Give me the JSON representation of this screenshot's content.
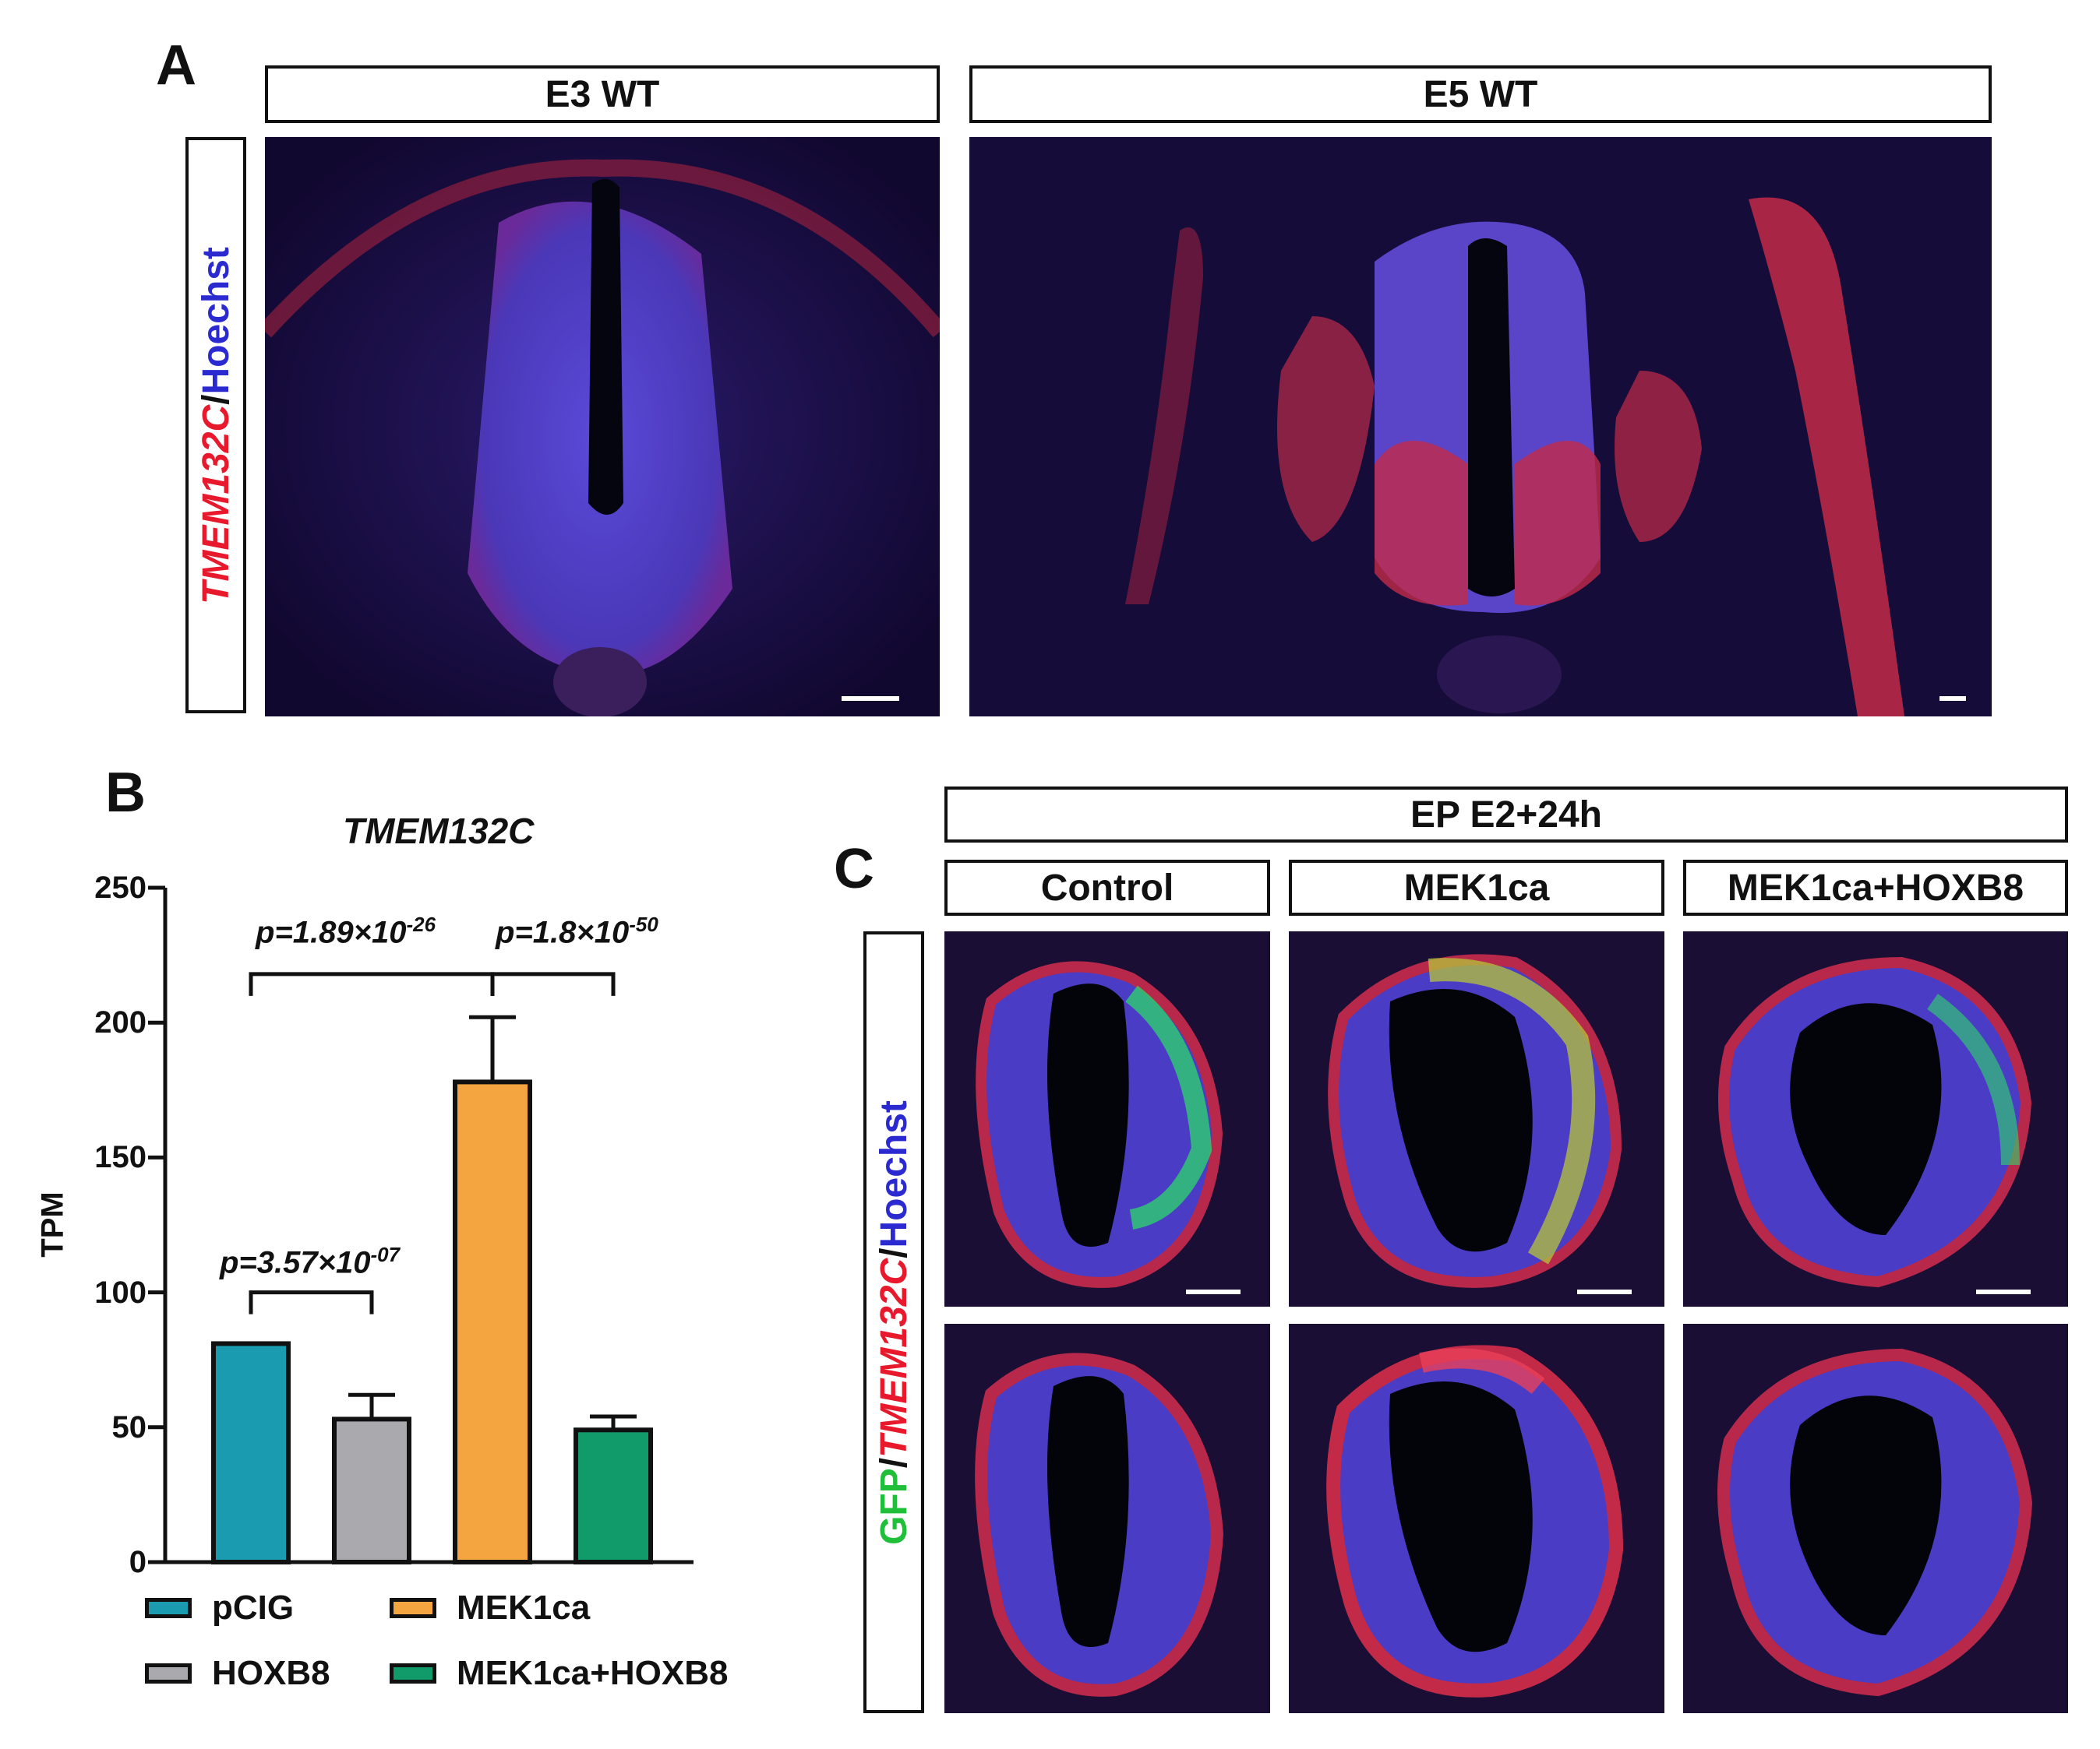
{
  "panel_a": {
    "letter": "A",
    "side_label": {
      "gene": "TMEM132C",
      "sep": "/",
      "stain": "Hoechst"
    },
    "headers": [
      "E3 WT",
      "E5 WT"
    ]
  },
  "panel_b": {
    "letter": "B",
    "yticks": [
      "250",
      "200",
      "150",
      "100",
      "50",
      "0"
    ],
    "legend": [
      {
        "label": "pCIG",
        "color": "#1a9bb0"
      },
      {
        "label": "MEK1ca",
        "color": "#f5a53f"
      },
      {
        "label": "HOXB8",
        "color": "#a9a9ae"
      },
      {
        "label": "MEK1ca+HOXB8",
        "color": "#129b6a"
      }
    ],
    "pvalues": [
      {
        "base": "p=3.57×10",
        "exp": "-07"
      },
      {
        "base": "p=1.89×10",
        "exp": "-26"
      },
      {
        "base": "p=1.8×10",
        "exp": "-50"
      }
    ]
  },
  "chart_data": {
    "type": "bar",
    "title": "TMEM132C",
    "xlabel": "",
    "ylabel": "TPM",
    "ylim": [
      0,
      250
    ],
    "categories": [
      "pCIG",
      "HOXB8",
      "MEK1ca",
      "MEK1ca+HOXB8"
    ],
    "values": [
      81,
      53,
      178,
      49
    ],
    "errors": [
      0,
      9,
      24,
      5
    ],
    "colors": [
      "#1a9bb0",
      "#a9a9ae",
      "#f5a53f",
      "#129b6a"
    ],
    "comparisons": [
      {
        "groups": [
          "pCIG",
          "HOXB8"
        ],
        "p": "p=3.57×10-07"
      },
      {
        "groups": [
          "pCIG",
          "MEK1ca"
        ],
        "p": "p=1.89×10-26"
      },
      {
        "groups": [
          "MEK1ca",
          "MEK1ca+HOXB8"
        ],
        "p": "p=1.8×10-50"
      }
    ],
    "grid": false
  },
  "panel_c": {
    "letter": "C",
    "top_header": "EP E2+24h",
    "col_headers": [
      "Control",
      "MEK1ca",
      "MEK1ca+HOXB8"
    ],
    "side_label": {
      "gfp": "GFP",
      "sep1": "/",
      "gene": "TMEM132C",
      "sep2": "/",
      "stain": "Hoechst"
    }
  }
}
